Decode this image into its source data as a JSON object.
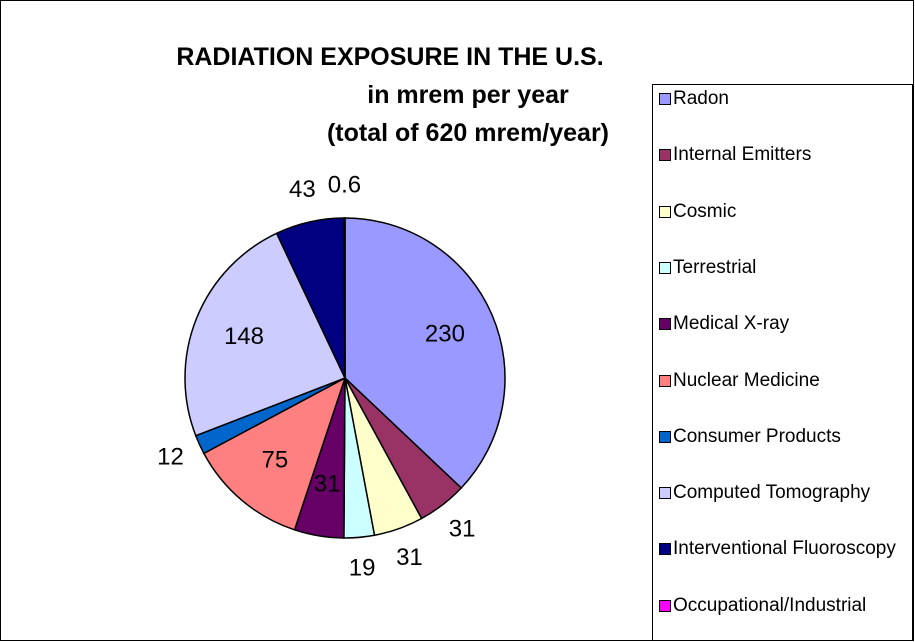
{
  "chart_data": {
    "type": "pie",
    "title": "RADIATION EXPOSURE IN THE U.S.",
    "subtitle": [
      "in mrem per year",
      "(total of 620 mrem/year)"
    ],
    "categories": [
      "Radon",
      "Internal Emitters",
      "Cosmic",
      "Terrestrial",
      "Medical X-ray",
      "Nuclear Medicine",
      "Consumer Products",
      "Computed Tomography",
      "Interventional Fluoroscopy",
      "Occupational/Industrial"
    ],
    "values": [
      230,
      31,
      31,
      19,
      31,
      75,
      12,
      148,
      43,
      0.6
    ],
    "colors": [
      "#9999ff",
      "#993366",
      "#ffffcc",
      "#ccffff",
      "#660066",
      "#ff8080",
      "#0066cc",
      "#ccccff",
      "#000080",
      "#ff00ff"
    ],
    "legend": "right"
  }
}
